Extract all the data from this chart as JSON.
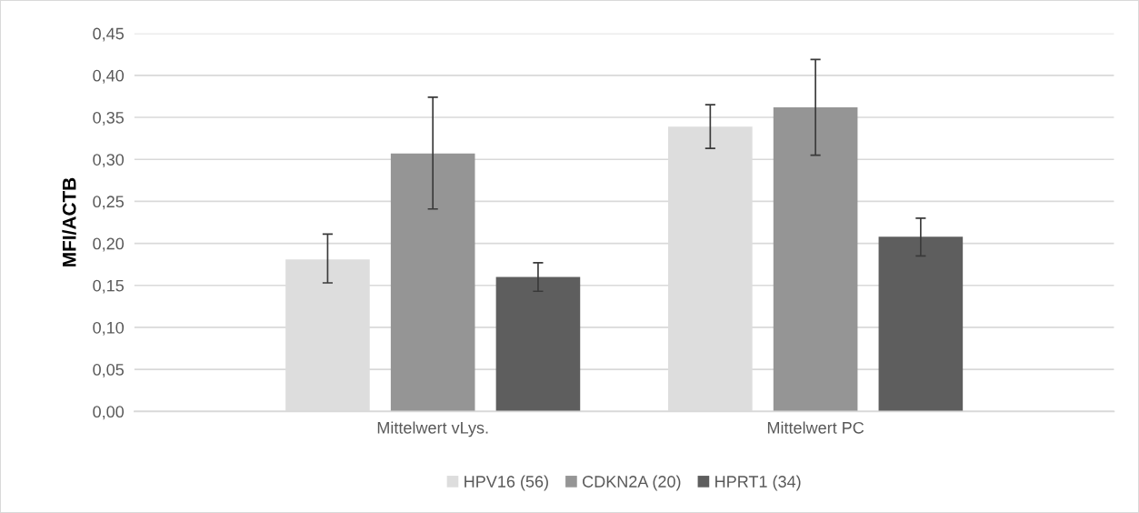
{
  "chart_data": {
    "type": "bar",
    "ylabel": "MFI/ACTB",
    "categories": [
      "Mittelwert vLys.",
      "Mittelwert PC"
    ],
    "series": [
      {
        "name": "HPV16 (56)",
        "color": "#dddddd",
        "values": [
          0.181,
          0.339
        ],
        "errors": [
          [
            0.153,
            0.211
          ],
          [
            0.313,
            0.365
          ]
        ]
      },
      {
        "name": "CDKN2A (20)",
        "color": "#959595",
        "values": [
          0.307,
          0.362
        ],
        "errors": [
          [
            0.241,
            0.374
          ],
          [
            0.305,
            0.419
          ]
        ]
      },
      {
        "name": "HPRT1 (34)",
        "color": "#5e5e5e",
        "values": [
          0.16,
          0.208
        ],
        "errors": [
          [
            0.143,
            0.177
          ],
          [
            0.185,
            0.23
          ]
        ]
      }
    ],
    "ylim": [
      0,
      0.45
    ],
    "yticks": [
      {
        "value": 0,
        "label": "0,00"
      },
      {
        "value": 0.05,
        "label": "0,05"
      },
      {
        "value": 0.1,
        "label": "0,10"
      },
      {
        "value": 0.15,
        "label": "0,15"
      },
      {
        "value": 0.2,
        "label": "0,20"
      },
      {
        "value": 0.25,
        "label": "0,25"
      },
      {
        "value": 0.3,
        "label": "0,30"
      },
      {
        "value": 0.35,
        "label": "0,35"
      },
      {
        "value": 0.4,
        "label": "0,40"
      },
      {
        "value": 0.45,
        "label": "0,45"
      }
    ],
    "grid": "y",
    "legend": "bottom"
  }
}
